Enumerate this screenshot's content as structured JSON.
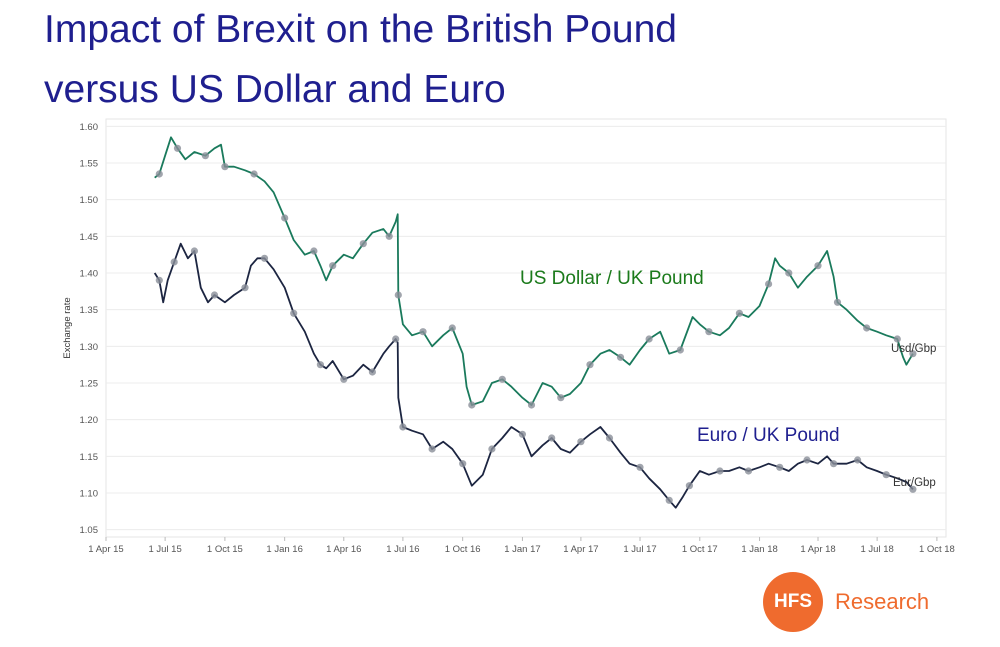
{
  "title": {
    "line1": "Impact of Brexit on the British Pound",
    "line2": "versus US Dollar and Euro"
  },
  "logo": {
    "mark": "HFS",
    "text": "Research",
    "color": "#ef6b2e"
  },
  "chart_data": {
    "type": "line",
    "title": "Impact of Brexit on the British Pound versus US Dollar and Euro",
    "xlabel": "",
    "ylabel": "Exchange rate",
    "ylim": [
      1.04,
      1.61
    ],
    "xlim": [
      "2015-04-01",
      "2018-10-15"
    ],
    "grid": true,
    "y_ticks": [
      "1.05",
      "1.10",
      "1.15",
      "1.20",
      "1.25",
      "1.30",
      "1.35",
      "1.40",
      "1.45",
      "1.50",
      "1.55",
      "1.60"
    ],
    "x_ticks": [
      {
        "date": "2015-04-01",
        "label": "1 Apr 15"
      },
      {
        "date": "2015-07-01",
        "label": "1 Jul 15"
      },
      {
        "date": "2015-10-01",
        "label": "1 Oct 15"
      },
      {
        "date": "2016-01-01",
        "label": "1 Jan 16"
      },
      {
        "date": "2016-04-01",
        "label": "1 Apr 16"
      },
      {
        "date": "2016-07-01",
        "label": "1 Jul 16"
      },
      {
        "date": "2016-10-01",
        "label": "1 Oct 16"
      },
      {
        "date": "2017-01-01",
        "label": "1 Jan 17"
      },
      {
        "date": "2017-04-01",
        "label": "1 Apr 17"
      },
      {
        "date": "2017-07-01",
        "label": "1 Jul 17"
      },
      {
        "date": "2017-10-01",
        "label": "1 Oct 17"
      },
      {
        "date": "2018-01-01",
        "label": "1 Jan 18"
      },
      {
        "date": "2018-04-01",
        "label": "1 Apr 18"
      },
      {
        "date": "2018-07-01",
        "label": "1 Jul 18"
      },
      {
        "date": "2018-10-01",
        "label": "1 Oct 18"
      }
    ],
    "annotations": [
      {
        "text": "US Dollar / UK Pound",
        "series": "Usd/Gbp"
      },
      {
        "text": "Euro / UK Pound",
        "series": "Eur/Gbp"
      }
    ],
    "series": [
      {
        "name": "Usd/Gbp",
        "color": "#1a7a5c",
        "points": [
          [
            "2015-06-15",
            1.53
          ],
          [
            "2015-06-22",
            1.535
          ],
          [
            "2015-07-01",
            1.56
          ],
          [
            "2015-07-10",
            1.585
          ],
          [
            "2015-07-20",
            1.57
          ],
          [
            "2015-08-01",
            1.555
          ],
          [
            "2015-08-15",
            1.565
          ],
          [
            "2015-09-01",
            1.56
          ],
          [
            "2015-09-15",
            1.57
          ],
          [
            "2015-09-25",
            1.575
          ],
          [
            "2015-10-01",
            1.545
          ],
          [
            "2015-10-15",
            1.545
          ],
          [
            "2015-11-01",
            1.54
          ],
          [
            "2015-11-15",
            1.535
          ],
          [
            "2015-12-01",
            1.525
          ],
          [
            "2015-12-15",
            1.51
          ],
          [
            "2016-01-01",
            1.475
          ],
          [
            "2016-01-15",
            1.445
          ],
          [
            "2016-02-01",
            1.425
          ],
          [
            "2016-02-15",
            1.43
          ],
          [
            "2016-02-25",
            1.41
          ],
          [
            "2016-03-05",
            1.39
          ],
          [
            "2016-03-15",
            1.41
          ],
          [
            "2016-04-01",
            1.425
          ],
          [
            "2016-04-15",
            1.42
          ],
          [
            "2016-05-01",
            1.44
          ],
          [
            "2016-05-15",
            1.455
          ],
          [
            "2016-06-01",
            1.46
          ],
          [
            "2016-06-10",
            1.45
          ],
          [
            "2016-06-20",
            1.47
          ],
          [
            "2016-06-23",
            1.48
          ],
          [
            "2016-06-24",
            1.37
          ],
          [
            "2016-07-01",
            1.33
          ],
          [
            "2016-07-15",
            1.315
          ],
          [
            "2016-08-01",
            1.32
          ],
          [
            "2016-08-15",
            1.3
          ],
          [
            "2016-09-01",
            1.315
          ],
          [
            "2016-09-15",
            1.325
          ],
          [
            "2016-10-01",
            1.29
          ],
          [
            "2016-10-07",
            1.245
          ],
          [
            "2016-10-15",
            1.22
          ],
          [
            "2016-11-01",
            1.225
          ],
          [
            "2016-11-15",
            1.25
          ],
          [
            "2016-12-01",
            1.255
          ],
          [
            "2016-12-15",
            1.245
          ],
          [
            "2017-01-01",
            1.23
          ],
          [
            "2017-01-15",
            1.22
          ],
          [
            "2017-02-01",
            1.25
          ],
          [
            "2017-02-15",
            1.245
          ],
          [
            "2017-03-01",
            1.23
          ],
          [
            "2017-03-15",
            1.235
          ],
          [
            "2017-04-01",
            1.25
          ],
          [
            "2017-04-15",
            1.275
          ],
          [
            "2017-05-01",
            1.29
          ],
          [
            "2017-05-15",
            1.295
          ],
          [
            "2017-06-01",
            1.285
          ],
          [
            "2017-06-15",
            1.275
          ],
          [
            "2017-07-01",
            1.295
          ],
          [
            "2017-07-15",
            1.31
          ],
          [
            "2017-08-01",
            1.32
          ],
          [
            "2017-08-15",
            1.29
          ],
          [
            "2017-09-01",
            1.295
          ],
          [
            "2017-09-20",
            1.34
          ],
          [
            "2017-10-01",
            1.33
          ],
          [
            "2017-10-15",
            1.32
          ],
          [
            "2017-11-01",
            1.315
          ],
          [
            "2017-11-15",
            1.325
          ],
          [
            "2017-12-01",
            1.345
          ],
          [
            "2017-12-15",
            1.34
          ],
          [
            "2018-01-01",
            1.355
          ],
          [
            "2018-01-15",
            1.385
          ],
          [
            "2018-01-25",
            1.42
          ],
          [
            "2018-02-01",
            1.41
          ],
          [
            "2018-02-15",
            1.4
          ],
          [
            "2018-03-01",
            1.38
          ],
          [
            "2018-03-15",
            1.395
          ],
          [
            "2018-04-01",
            1.41
          ],
          [
            "2018-04-15",
            1.43
          ],
          [
            "2018-04-25",
            1.395
          ],
          [
            "2018-05-01",
            1.36
          ],
          [
            "2018-05-15",
            1.35
          ],
          [
            "2018-06-01",
            1.335
          ],
          [
            "2018-06-15",
            1.325
          ],
          [
            "2018-07-01",
            1.32
          ],
          [
            "2018-07-15",
            1.315
          ],
          [
            "2018-08-01",
            1.31
          ],
          [
            "2018-08-10",
            1.285
          ],
          [
            "2018-08-15",
            1.275
          ],
          [
            "2018-08-25",
            1.29
          ]
        ]
      },
      {
        "name": "Eur/Gbp",
        "color": "#1c2541",
        "points": [
          [
            "2015-06-15",
            1.4
          ],
          [
            "2015-06-22",
            1.39
          ],
          [
            "2015-06-28",
            1.36
          ],
          [
            "2015-07-05",
            1.39
          ],
          [
            "2015-07-15",
            1.415
          ],
          [
            "2015-07-25",
            1.44
          ],
          [
            "2015-08-05",
            1.42
          ],
          [
            "2015-08-15",
            1.43
          ],
          [
            "2015-08-25",
            1.38
          ],
          [
            "2015-09-05",
            1.36
          ],
          [
            "2015-09-15",
            1.37
          ],
          [
            "2015-10-01",
            1.36
          ],
          [
            "2015-10-15",
            1.37
          ],
          [
            "2015-11-01",
            1.38
          ],
          [
            "2015-11-10",
            1.41
          ],
          [
            "2015-11-20",
            1.42
          ],
          [
            "2015-12-01",
            1.42
          ],
          [
            "2015-12-15",
            1.405
          ],
          [
            "2016-01-01",
            1.38
          ],
          [
            "2016-01-15",
            1.345
          ],
          [
            "2016-02-01",
            1.32
          ],
          [
            "2016-02-15",
            1.29
          ],
          [
            "2016-02-25",
            1.275
          ],
          [
            "2016-03-05",
            1.27
          ],
          [
            "2016-03-15",
            1.28
          ],
          [
            "2016-04-01",
            1.255
          ],
          [
            "2016-04-15",
            1.26
          ],
          [
            "2016-05-01",
            1.275
          ],
          [
            "2016-05-15",
            1.265
          ],
          [
            "2016-06-01",
            1.29
          ],
          [
            "2016-06-10",
            1.3
          ],
          [
            "2016-06-20",
            1.31
          ],
          [
            "2016-06-23",
            1.305
          ],
          [
            "2016-06-24",
            1.23
          ],
          [
            "2016-07-01",
            1.19
          ],
          [
            "2016-07-15",
            1.185
          ],
          [
            "2016-08-01",
            1.18
          ],
          [
            "2016-08-15",
            1.16
          ],
          [
            "2016-09-01",
            1.17
          ],
          [
            "2016-09-15",
            1.16
          ],
          [
            "2016-10-01",
            1.14
          ],
          [
            "2016-10-15",
            1.11
          ],
          [
            "2016-11-01",
            1.125
          ],
          [
            "2016-11-15",
            1.16
          ],
          [
            "2016-12-01",
            1.175
          ],
          [
            "2016-12-15",
            1.19
          ],
          [
            "2017-01-01",
            1.18
          ],
          [
            "2017-01-15",
            1.15
          ],
          [
            "2017-02-01",
            1.165
          ],
          [
            "2017-02-15",
            1.175
          ],
          [
            "2017-03-01",
            1.16
          ],
          [
            "2017-03-15",
            1.155
          ],
          [
            "2017-04-01",
            1.17
          ],
          [
            "2017-04-15",
            1.18
          ],
          [
            "2017-05-01",
            1.19
          ],
          [
            "2017-05-15",
            1.175
          ],
          [
            "2017-06-01",
            1.155
          ],
          [
            "2017-06-15",
            1.14
          ],
          [
            "2017-07-01",
            1.135
          ],
          [
            "2017-07-15",
            1.12
          ],
          [
            "2017-08-01",
            1.105
          ],
          [
            "2017-08-15",
            1.09
          ],
          [
            "2017-08-25",
            1.08
          ],
          [
            "2017-09-05",
            1.095
          ],
          [
            "2017-09-15",
            1.11
          ],
          [
            "2017-10-01",
            1.13
          ],
          [
            "2017-10-15",
            1.125
          ],
          [
            "2017-11-01",
            1.13
          ],
          [
            "2017-11-15",
            1.13
          ],
          [
            "2017-12-01",
            1.135
          ],
          [
            "2017-12-15",
            1.13
          ],
          [
            "2018-01-01",
            1.135
          ],
          [
            "2018-01-15",
            1.14
          ],
          [
            "2018-02-01",
            1.135
          ],
          [
            "2018-02-15",
            1.13
          ],
          [
            "2018-03-01",
            1.14
          ],
          [
            "2018-03-15",
            1.145
          ],
          [
            "2018-04-01",
            1.14
          ],
          [
            "2018-04-15",
            1.15
          ],
          [
            "2018-04-25",
            1.14
          ],
          [
            "2018-05-01",
            1.14
          ],
          [
            "2018-05-15",
            1.14
          ],
          [
            "2018-06-01",
            1.145
          ],
          [
            "2018-06-15",
            1.135
          ],
          [
            "2018-07-01",
            1.13
          ],
          [
            "2018-07-15",
            1.125
          ],
          [
            "2018-08-01",
            1.12
          ],
          [
            "2018-08-15",
            1.115
          ],
          [
            "2018-08-25",
            1.105
          ]
        ]
      }
    ]
  }
}
